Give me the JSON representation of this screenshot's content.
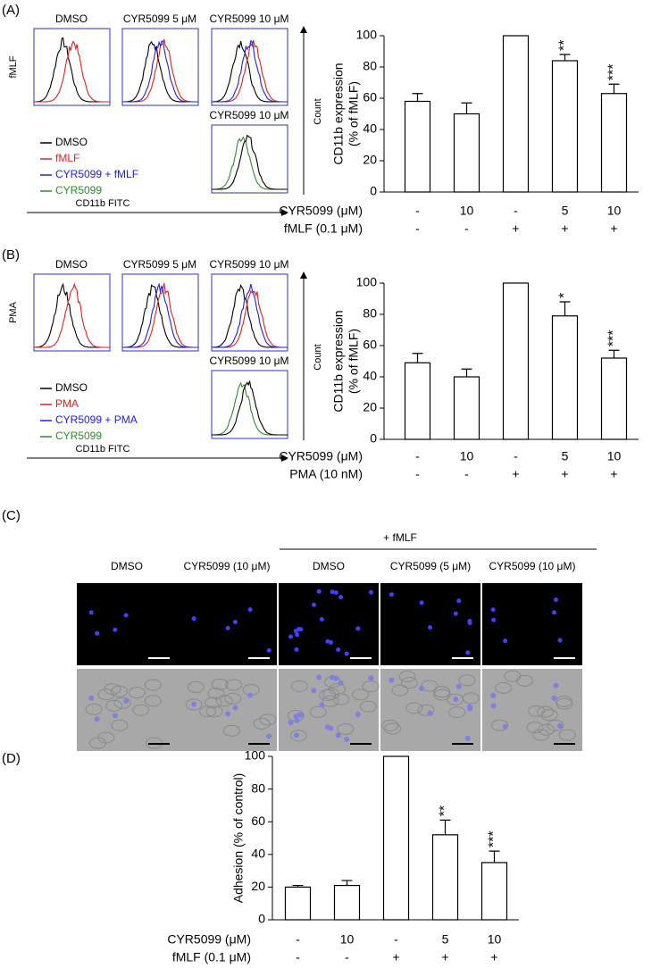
{
  "figure": {
    "panel_labels": [
      "(A)",
      "(B)",
      "(C)",
      "(D)"
    ],
    "flow": [
      {
        "stimulus": "fMLF",
        "titles": [
          "DMSO",
          "CYR5099 5 μM",
          "CYR5099 10 μM",
          "CYR5099 10 μM"
        ],
        "legend": [
          "DMSO",
          "fMLF",
          "CYR5099 + fMLF",
          "CYR5099"
        ],
        "legend_colors": [
          "#000000",
          "#e02020",
          "#2020e0",
          "#2e8b2e"
        ],
        "x_label": "CD11b FITC",
        "y_label": "Count"
      },
      {
        "stimulus": "PMA",
        "titles": [
          "DMSO",
          "CYR5099 5 μM",
          "CYR5099 10 μM",
          "CYR5099 10 μM"
        ],
        "legend": [
          "DMSO",
          "PMA",
          "CYR5099 + PMA",
          "CYR5099"
        ],
        "legend_colors": [
          "#000000",
          "#e02020",
          "#2020e0",
          "#2e8b2e"
        ],
        "x_label": "CD11b FITC",
        "y_label": "Count"
      }
    ],
    "imaging": {
      "group_label": "+ fMLF",
      "columns": [
        "DMSO",
        "CYR5099 (10 μM)",
        "DMSO",
        "CYR5099 (5 μM)",
        "CYR5099 (10 μM)"
      ]
    }
  },
  "chart_data": [
    {
      "type": "bar",
      "ylabel": [
        "CD11b expression",
        "(% of fMLF)"
      ],
      "color": "#ffffff",
      "values": [
        58,
        50,
        100,
        84,
        63
      ],
      "errors": [
        5,
        7,
        null,
        4,
        6
      ],
      "annotations": [
        null,
        null,
        null,
        "**",
        "***"
      ],
      "rows": [
        {
          "label": "CYR5099 (μM)",
          "values": [
            "-",
            "10",
            "-",
            "5",
            "10"
          ]
        },
        {
          "label": "fMLF (0.1 μM)",
          "values": [
            "-",
            "-",
            "+",
            "+",
            "+"
          ]
        }
      ],
      "ylim": [
        0,
        100
      ],
      "yticks": [
        0,
        20,
        40,
        60,
        80,
        100
      ]
    },
    {
      "type": "bar",
      "ylabel": [
        "CD11b expression",
        "(% of fMLF)"
      ],
      "color": "#ffffff",
      "values": [
        49,
        40,
        100,
        79,
        52
      ],
      "errors": [
        6,
        5,
        null,
        9,
        5
      ],
      "annotations": [
        null,
        null,
        null,
        "*",
        "***"
      ],
      "rows": [
        {
          "label": "CYR5099 (μM)",
          "values": [
            "-",
            "10",
            "-",
            "5",
            "10"
          ]
        },
        {
          "label": "PMA (10 nM)",
          "values": [
            "-",
            "-",
            "+",
            "+",
            "+"
          ]
        }
      ],
      "ylim": [
        0,
        100
      ],
      "yticks": [
        0,
        20,
        40,
        60,
        80,
        100
      ]
    },
    {
      "type": "bar",
      "ylabel": [
        "Adhesion (% of control)"
      ],
      "color": "#ffffff",
      "values": [
        20,
        21,
        100,
        52,
        35
      ],
      "errors": [
        1,
        3,
        null,
        9,
        7
      ],
      "annotations": [
        null,
        null,
        null,
        "**",
        "***"
      ],
      "rows": [
        {
          "label": "CYR5099 (μM)",
          "values": [
            "-",
            "10",
            "-",
            "5",
            "10"
          ]
        },
        {
          "label": "fMLF (0.1 μM)",
          "values": [
            "-",
            "-",
            "+",
            "+",
            "+"
          ]
        }
      ],
      "ylim": [
        0,
        100
      ],
      "yticks": [
        0,
        20,
        40,
        60,
        80,
        100
      ]
    }
  ]
}
